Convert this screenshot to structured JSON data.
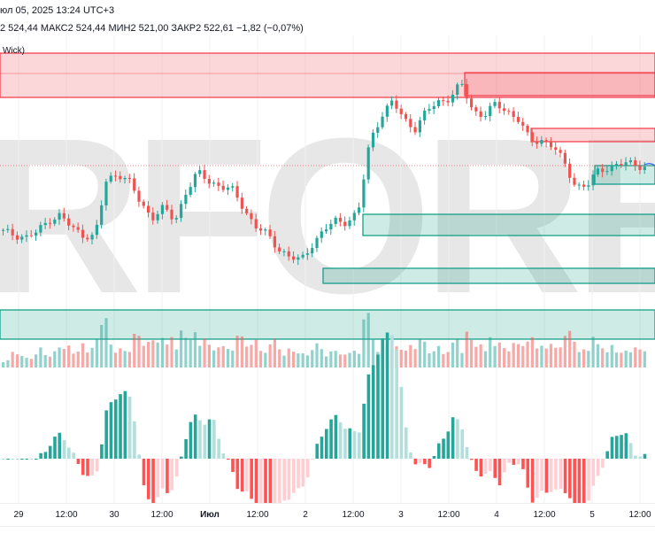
{
  "header": {
    "datetime": "юл 05, 2025 13:24 UTC+3",
    "ohlc": "2 524,44  МАКС2 524,44  МИН2 521,00  ЗАКР2 522,61  −1,82 (−0,07%)",
    "indicator": "Wick)"
  },
  "watermark": "RFOREX.c",
  "colors": {
    "up": "#26a69a",
    "down": "#ef5350",
    "zone_red": "#f23645",
    "zone_green": "#089981"
  },
  "x_axis": [
    "29",
    "12:00",
    "30",
    "12:00",
    "Июл",
    "12:00",
    "2",
    "12:00",
    "3",
    "12:00",
    "4",
    "12:00",
    "5",
    "12:00"
  ],
  "chart_data": {
    "type": "candlestick",
    "last_close": 2522.61,
    "anchor_closes": [
      2485.6,
      2484.1,
      2482.6,
      2485.6,
      2492.6,
      2495.1,
      2487.6,
      2484.1,
      2482.6,
      2514.1,
      2519.1,
      2514.1,
      2501.6,
      2494.1,
      2499.1,
      2491.6,
      2509.1,
      2519.1,
      2514.1,
      2511.6,
      2509.1,
      2499.1,
      2489.1,
      2484.1,
      2476.6,
      2471.6,
      2469.1,
      2479.1,
      2486.6,
      2491.6,
      2491.6,
      2496.6,
      2536.6,
      2551.6,
      2559.1,
      2549.1,
      2544.1,
      2554.1,
      2559.1,
      2561.6,
      2569.1,
      2554.1,
      2551.6,
      2557.6,
      2554.1,
      2549.1,
      2536.6,
      2537.6,
      2534.1,
      2524.1,
      2511.6,
      2511.6,
      2520.6,
      2522.6,
      2524.1,
      2524.1,
      2522.6
    ]
  }
}
